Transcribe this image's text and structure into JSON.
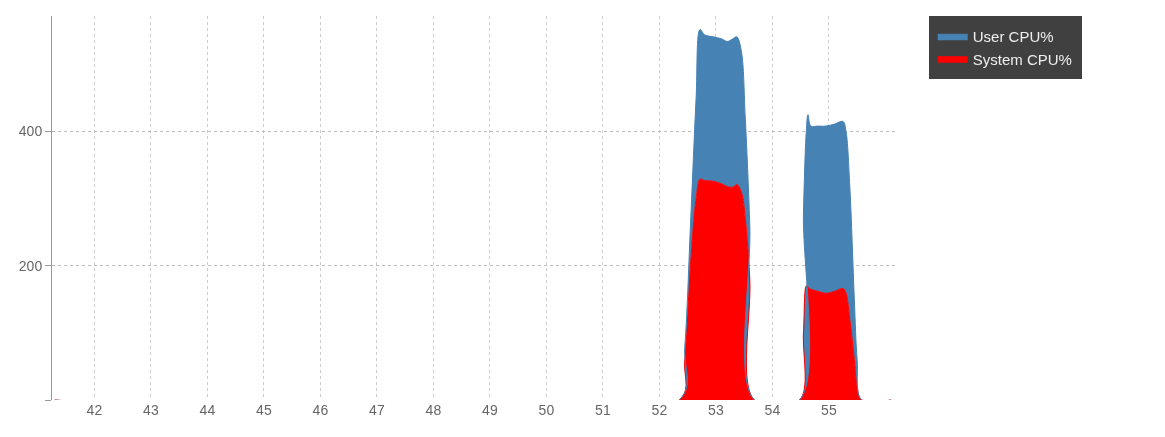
{
  "chart_data": {
    "type": "area",
    "stacked": true,
    "x": [
      41.3,
      52.35,
      52.45,
      52.55,
      52.65,
      52.72,
      52.8,
      52.95,
      53.1,
      53.2,
      53.3,
      53.37,
      53.45,
      53.52,
      53.6,
      53.68,
      54.48,
      54.55,
      54.6,
      54.63,
      54.68,
      54.8,
      54.95,
      55.1,
      55.25,
      55.3,
      55.37,
      55.45,
      55.5,
      55.58,
      56.1
    ],
    "series": [
      {
        "name": "System CPU%",
        "color": "#ff0000",
        "values": [
          0,
          0,
          60,
          200,
          300,
          329,
          327,
          326,
          322,
          318,
          317,
          321,
          310,
          270,
          180,
          0,
          0,
          100,
          170,
          168,
          165,
          162,
          159,
          162,
          166,
          160,
          120,
          60,
          20,
          0,
          0
        ]
      },
      {
        "name": "User CPU%",
        "color": "#4682b4",
        "values": [
          0,
          0,
          20,
          60,
          150,
          223,
          217,
          215,
          216,
          216,
          221,
          220,
          210,
          150,
          80,
          0,
          0,
          180,
          230,
          257,
          243,
          246,
          249,
          249,
          249,
          242,
          198,
          90,
          40,
          0,
          0
        ]
      }
    ],
    "xlim": [
      41.25,
      56.17
    ],
    "xticks": [
      42,
      43,
      44,
      45,
      46,
      47,
      48,
      49,
      50,
      51,
      52,
      53,
      54,
      55
    ],
    "ylim": [
      0,
      572
    ],
    "yticks": [
      {
        "value": 0,
        "label": null
      },
      200,
      400
    ],
    "grid": true,
    "legend": "top right"
  }
}
